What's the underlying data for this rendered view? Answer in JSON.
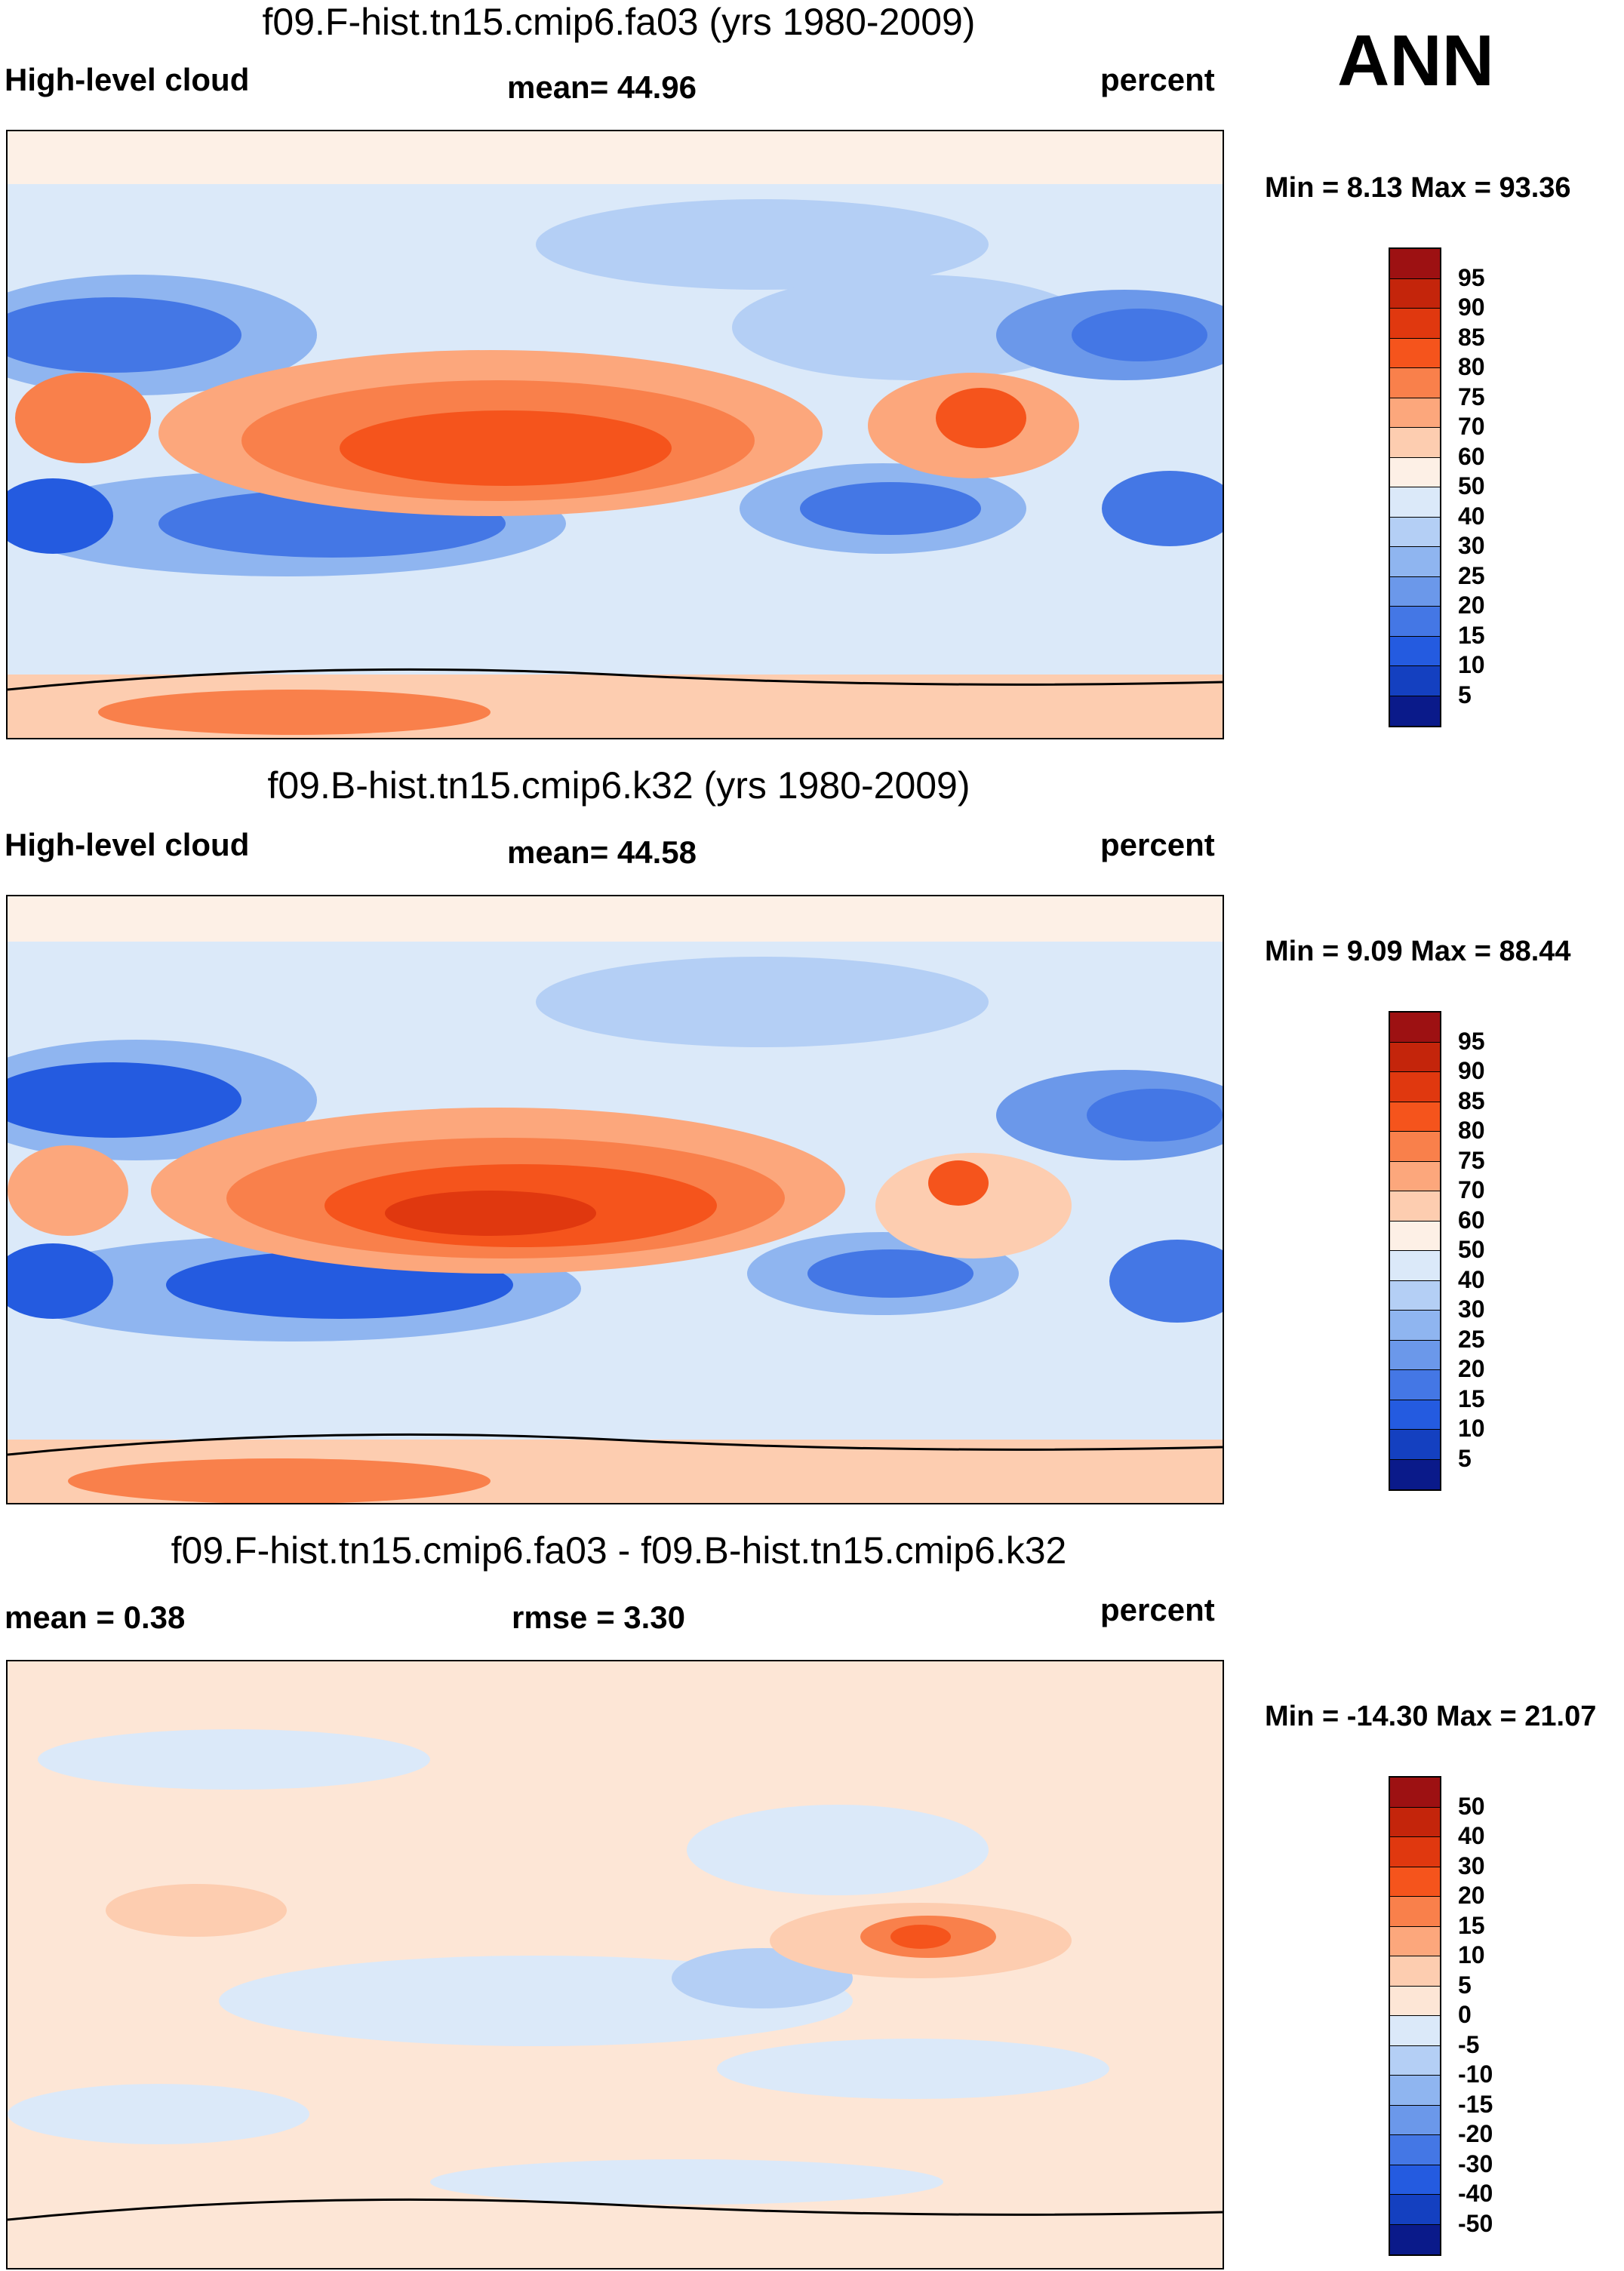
{
  "season": "ANN",
  "panels": [
    {
      "title": "f09.F-hist.tn15.cmip6.fa03 (yrs 1980-2009)",
      "left_label": "High-level cloud",
      "center_label": "mean=  44.96",
      "right_label": "percent",
      "minmax": "Min =   8.13 Max =  93.36",
      "colorbar_labels": [
        "95",
        "90",
        "85",
        "80",
        "75",
        "70",
        "60",
        "50",
        "40",
        "30",
        "25",
        "20",
        "15",
        "10",
        "5"
      ],
      "colorbar_colors": [
        "#9d1112",
        "#c4250b",
        "#e0380f",
        "#f5541c",
        "#f9804b",
        "#fca77c",
        "#fdcdb0",
        "#fdf0e6",
        "#dbe9f9",
        "#b4cff5",
        "#8fb5f0",
        "#6b98ea",
        "#4477e5",
        "#245be0",
        "#1440c0",
        "#0a1a8a"
      ]
    },
    {
      "title": "f09.B-hist.tn15.cmip6.k32 (yrs 1980-2009)",
      "left_label": "High-level cloud",
      "center_label": "mean=  44.58",
      "right_label": "percent",
      "minmax": "Min =   9.09 Max =  88.44",
      "colorbar_labels": [
        "95",
        "90",
        "85",
        "80",
        "75",
        "70",
        "60",
        "50",
        "40",
        "30",
        "25",
        "20",
        "15",
        "10",
        "5"
      ],
      "colorbar_colors": [
        "#9d1112",
        "#c4250b",
        "#e0380f",
        "#f5541c",
        "#f9804b",
        "#fca77c",
        "#fdcdb0",
        "#fdf0e6",
        "#dbe9f9",
        "#b4cff5",
        "#8fb5f0",
        "#6b98ea",
        "#4477e5",
        "#245be0",
        "#1440c0",
        "#0a1a8a"
      ]
    },
    {
      "title": "f09.F-hist.tn15.cmip6.fa03 - f09.B-hist.tn15.cmip6.k32",
      "left_label": "mean =   0.38",
      "center_label": "rmse =   3.30",
      "right_label": "percent",
      "minmax": "Min = -14.30 Max =  21.07",
      "colorbar_labels": [
        "50",
        "40",
        "30",
        "20",
        "15",
        "10",
        "5",
        "0",
        "-5",
        "-10",
        "-15",
        "-20",
        "-30",
        "-40",
        "-50"
      ],
      "colorbar_colors": [
        "#9d1112",
        "#c4250b",
        "#e0380f",
        "#f5541c",
        "#f9804b",
        "#fca77c",
        "#fdcdb0",
        "#fde6d6",
        "#dbe9f9",
        "#b4cff5",
        "#8fb5f0",
        "#6b98ea",
        "#4477e5",
        "#245be0",
        "#1440c0",
        "#0a1a8a"
      ]
    }
  ]
}
